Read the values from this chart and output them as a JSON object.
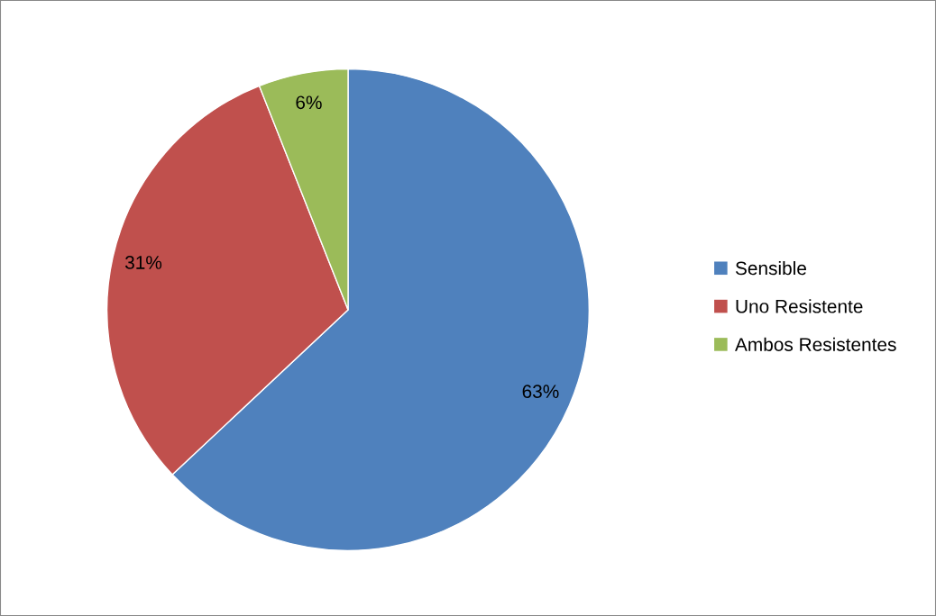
{
  "chart_data": {
    "type": "pie",
    "categories": [
      "Sensible",
      "Uno Resistente",
      "Ambos Resistentes"
    ],
    "values": [
      63,
      31,
      6
    ],
    "colors": [
      "#4f81bd",
      "#c0504d",
      "#9bbb59"
    ],
    "value_labels": [
      "63%",
      "31%",
      "6%"
    ],
    "legend": "right"
  }
}
